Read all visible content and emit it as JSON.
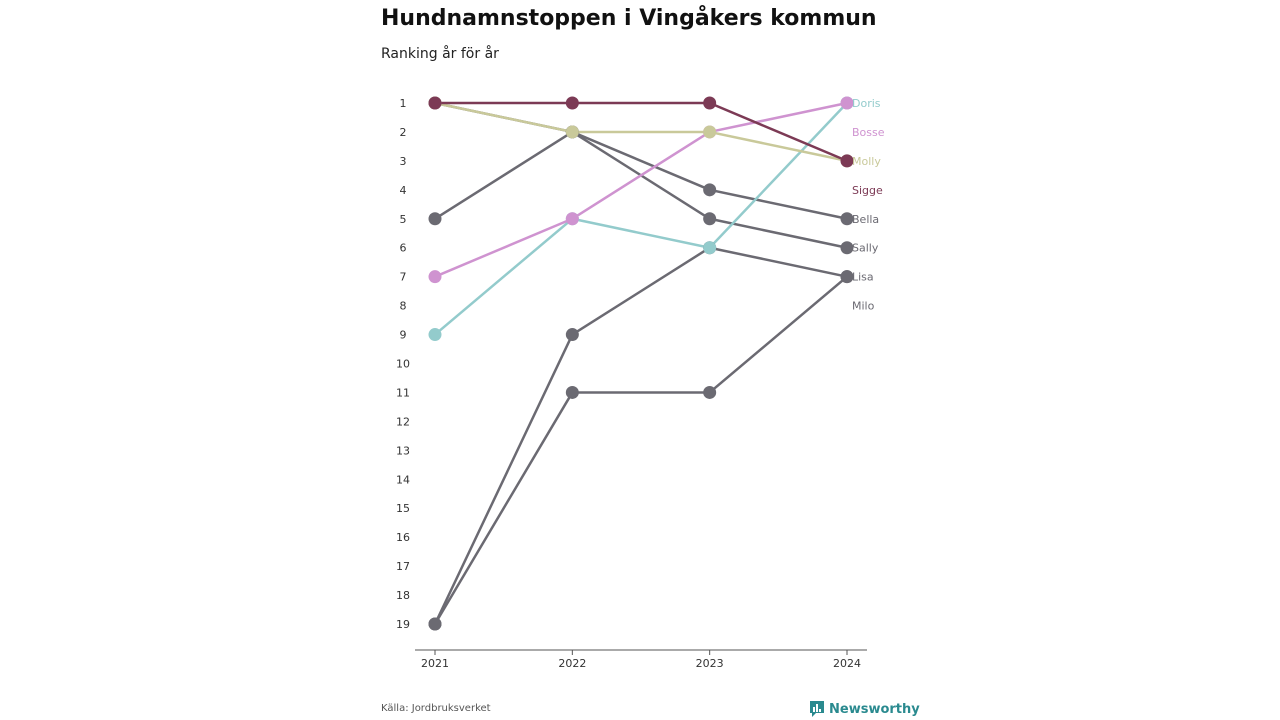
{
  "header": {
    "title": "Hundnamnstoppen i Vingåkers kommun",
    "subtitle": "Ranking år för år"
  },
  "footer": {
    "source": "Källa: Jordbruksverket",
    "brand": "Newsworthy",
    "brand_icon": "bar-chart-icon",
    "brand_color": "#2a8a8f"
  },
  "chart_data": {
    "type": "line",
    "title": "Hundnamnstoppen i Vingåkers kommun",
    "subtitle": "Ranking år för år",
    "x": [
      2021,
      2022,
      2023,
      2024
    ],
    "y_ticks": [
      1,
      2,
      3,
      4,
      5,
      6,
      7,
      8,
      9,
      10,
      11,
      12,
      13,
      14,
      15,
      16,
      17,
      18,
      19
    ],
    "y_reversed": true,
    "ylim": [
      1,
      19
    ],
    "series": [
      {
        "name": "Lisa",
        "color": "#6b6a72",
        "values": [
          19,
          9,
          6,
          7
        ]
      },
      {
        "name": "Milo",
        "color": "#6b6a72",
        "values": [
          19,
          11,
          11,
          7
        ]
      },
      {
        "name": "Bella",
        "color": "#6b6a72",
        "values": [
          5,
          2,
          4,
          5
        ]
      },
      {
        "name": "Sally",
        "color": "#6b6a72",
        "values": [
          1,
          2,
          5,
          6
        ]
      },
      {
        "name": "Doris",
        "color": "#93cbcc",
        "values": [
          9,
          5,
          6,
          1
        ]
      },
      {
        "name": "Bosse",
        "color": "#cf93d0",
        "values": [
          7,
          5,
          2,
          1
        ]
      },
      {
        "name": "Molly",
        "color": "#c9c99a",
        "values": [
          1,
          2,
          2,
          3
        ]
      },
      {
        "name": "Sigge",
        "color": "#7c3a55",
        "values": [
          1,
          1,
          1,
          3
        ]
      }
    ],
    "end_labels": [
      {
        "name": "Doris",
        "rank": 1,
        "color": "#93cbcc"
      },
      {
        "name": "Bosse",
        "rank": 2,
        "color": "#cf93d0"
      },
      {
        "name": "Molly",
        "rank": 3,
        "color": "#c9c99a"
      },
      {
        "name": "Sigge",
        "rank": 4,
        "color": "#7c3a55"
      },
      {
        "name": "Bella",
        "rank": 5,
        "color": "#6b6a72"
      },
      {
        "name": "Sally",
        "rank": 6,
        "color": "#6b6a72"
      },
      {
        "name": "Lisa",
        "rank": 7,
        "color": "#6b6a72"
      },
      {
        "name": "Milo",
        "rank": 8,
        "color": "#6b6a72"
      }
    ],
    "grid": false,
    "legend": "end-labels-right"
  }
}
